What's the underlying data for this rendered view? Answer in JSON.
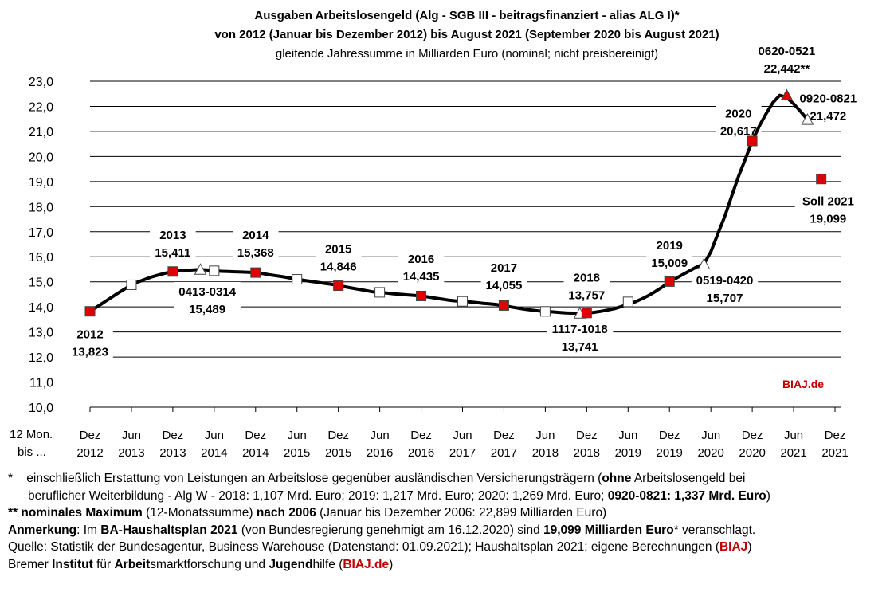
{
  "chart_data": {
    "type": "line",
    "title": "Ausgaben Arbeitslosengeld (Alg - SGB III - beitragsfinanziert - alias ALG I)*",
    "title2": "von 2012 (Januar bis Dezember 2012) bis August 2021 (September 2020 bis August 2021)",
    "subtitle": "gleitende Jahressumme in Milliarden Euro (nominal; nicht preisbereinigt)",
    "ylim": [
      10.0,
      23.0
    ],
    "yticks": [
      "23,0",
      "22,0",
      "21,0",
      "20,0",
      "19,0",
      "18,0",
      "17,0",
      "16,0",
      "15,0",
      "14,0",
      "13,0",
      "12,0",
      "11,0",
      "10,0"
    ],
    "x_axis_title": [
      "12 Mon.",
      "bis ..."
    ],
    "xticks": [
      {
        "l1": "Dez",
        "l2": "2012"
      },
      {
        "l1": "Jun",
        "l2": "2013"
      },
      {
        "l1": "Dez",
        "l2": "2013"
      },
      {
        "l1": "Jun",
        "l2": "2014"
      },
      {
        "l1": "Dez",
        "l2": "2014"
      },
      {
        "l1": "Jun",
        "l2": "2015"
      },
      {
        "l1": "Dez",
        "l2": "2015"
      },
      {
        "l1": "Jun",
        "l2": "2016"
      },
      {
        "l1": "Dez",
        "l2": "2016"
      },
      {
        "l1": "Jun",
        "l2": "2017"
      },
      {
        "l1": "Dez",
        "l2": "2017"
      },
      {
        "l1": "Jun",
        "l2": "2018"
      },
      {
        "l1": "Dez",
        "l2": "2018"
      },
      {
        "l1": "Jun",
        "l2": "2019"
      },
      {
        "l1": "Dez",
        "l2": "2019"
      },
      {
        "l1": "Jun",
        "l2": "2020"
      },
      {
        "l1": "Dez",
        "l2": "2020"
      },
      {
        "l1": "Jun",
        "l2": "2021"
      },
      {
        "l1": "Dez",
        "l2": "2021"
      }
    ],
    "series": [
      {
        "x": [
          "2012-12",
          "2013-01",
          "2013-02",
          "2013-03",
          "2013-04",
          "2013-05",
          "2013-06",
          "2013-07",
          "2013-08",
          "2013-09",
          "2013-10",
          "2013-11",
          "2013-12",
          "2014-01",
          "2014-02",
          "2014-03",
          "2014-04",
          "2014-05",
          "2014-06",
          "2014-07",
          "2014-08",
          "2014-09",
          "2014-10",
          "2014-11",
          "2014-12",
          "2015-01",
          "2015-02",
          "2015-03",
          "2015-04",
          "2015-05",
          "2015-06",
          "2015-07",
          "2015-08",
          "2015-09",
          "2015-10",
          "2015-11",
          "2015-12",
          "2016-01",
          "2016-02",
          "2016-03",
          "2016-04",
          "2016-05",
          "2016-06",
          "2016-07",
          "2016-08",
          "2016-09",
          "2016-10",
          "2016-11",
          "2016-12",
          "2017-01",
          "2017-02",
          "2017-03",
          "2017-04",
          "2017-05",
          "2017-06",
          "2017-07",
          "2017-08",
          "2017-09",
          "2017-10",
          "2017-11",
          "2017-12",
          "2018-01",
          "2018-02",
          "2018-03",
          "2018-04",
          "2018-05",
          "2018-06",
          "2018-07",
          "2018-08",
          "2018-09",
          "2018-10",
          "2018-11",
          "2018-12",
          "2019-01",
          "2019-02",
          "2019-03",
          "2019-04",
          "2019-05",
          "2019-06",
          "2019-07",
          "2019-08",
          "2019-09",
          "2019-10",
          "2019-11",
          "2019-12",
          "2020-01",
          "2020-02",
          "2020-03",
          "2020-04",
          "2020-05",
          "2020-06",
          "2020-07",
          "2020-08",
          "2020-09",
          "2020-10",
          "2020-11",
          "2020-12",
          "2021-01",
          "2021-02",
          "2021-03",
          "2021-04",
          "2021-05",
          "2021-06",
          "2021-07",
          "2021-08"
        ],
        "values": [
          13.823,
          14.0,
          14.18,
          14.36,
          14.54,
          14.71,
          14.88,
          15.0,
          15.1,
          15.2,
          15.28,
          15.35,
          15.411,
          15.44,
          15.46,
          15.475,
          15.489,
          15.47,
          15.44,
          15.42,
          15.41,
          15.4,
          15.39,
          15.38,
          15.368,
          15.33,
          15.28,
          15.24,
          15.2,
          15.15,
          15.1,
          15.06,
          15.02,
          14.98,
          14.94,
          14.9,
          14.846,
          14.8,
          14.75,
          14.7,
          14.65,
          14.6,
          14.58,
          14.55,
          14.52,
          14.5,
          14.48,
          14.46,
          14.435,
          14.4,
          14.35,
          14.31,
          14.27,
          14.24,
          14.22,
          14.2,
          14.17,
          14.14,
          14.12,
          14.09,
          14.055,
          14.0,
          13.95,
          13.91,
          13.87,
          13.84,
          13.82,
          13.8,
          13.78,
          13.76,
          13.75,
          13.741,
          13.757,
          13.78,
          13.82,
          13.87,
          13.93,
          14.01,
          14.1,
          14.2,
          14.32,
          14.46,
          14.62,
          14.8,
          15.009,
          15.15,
          15.3,
          15.45,
          15.6,
          15.707,
          16.2,
          16.9,
          17.6,
          18.4,
          19.2,
          19.9,
          20.617,
          21.2,
          21.7,
          22.15,
          22.442,
          22.35,
          22.1,
          21.8,
          21.472
        ]
      }
    ],
    "markers": [
      {
        "x": "2012-12",
        "value": 13.823,
        "shape": "square",
        "color": "#e00000"
      },
      {
        "x": "2013-06",
        "value": 14.88,
        "shape": "square",
        "color": "#ffffff"
      },
      {
        "x": "2013-12",
        "value": 15.411,
        "shape": "square",
        "color": "#e00000"
      },
      {
        "x": "2014-04",
        "value": 15.489,
        "shape": "triangle",
        "color": "#ffffff"
      },
      {
        "x": "2014-06",
        "value": 15.44,
        "shape": "square",
        "color": "#ffffff"
      },
      {
        "x": "2014-12",
        "value": 15.368,
        "shape": "square",
        "color": "#e00000"
      },
      {
        "x": "2015-06",
        "value": 15.1,
        "shape": "square",
        "color": "#ffffff"
      },
      {
        "x": "2015-12",
        "value": 14.846,
        "shape": "square",
        "color": "#e00000"
      },
      {
        "x": "2016-06",
        "value": 14.58,
        "shape": "square",
        "color": "#ffffff"
      },
      {
        "x": "2016-12",
        "value": 14.435,
        "shape": "square",
        "color": "#e00000"
      },
      {
        "x": "2017-06",
        "value": 14.22,
        "shape": "square",
        "color": "#ffffff"
      },
      {
        "x": "2017-12",
        "value": 14.055,
        "shape": "square",
        "color": "#e00000"
      },
      {
        "x": "2018-06",
        "value": 13.82,
        "shape": "square",
        "color": "#ffffff"
      },
      {
        "x": "2018-11",
        "value": 13.741,
        "shape": "triangle",
        "color": "#ffffff"
      },
      {
        "x": "2018-12",
        "value": 13.757,
        "shape": "square",
        "color": "#e00000"
      },
      {
        "x": "2019-06",
        "value": 14.2,
        "shape": "square",
        "color": "#ffffff"
      },
      {
        "x": "2019-12",
        "value": 15.009,
        "shape": "square",
        "color": "#e00000"
      },
      {
        "x": "2020-05",
        "value": 15.707,
        "shape": "triangle",
        "color": "#ffffff"
      },
      {
        "x": "2020-12",
        "value": 20.617,
        "shape": "square",
        "color": "#e00000"
      },
      {
        "x": "2021-05",
        "value": 22.442,
        "shape": "triangle",
        "color": "#e00000"
      },
      {
        "x": "2021-08",
        "value": 21.472,
        "shape": "triangle",
        "color": "#ffffff"
      },
      {
        "x": "2021-10",
        "value": 19.099,
        "shape": "square",
        "color": "#e00000"
      }
    ],
    "annotations": [
      {
        "line1": "2012",
        "line2": "13,823",
        "x": "2012-12",
        "value": 12.75
      },
      {
        "line1": "2013",
        "line2": "15,411",
        "x": "2013-12",
        "value": 16.7
      },
      {
        "line1": "0413-0314",
        "line2": "15,489",
        "x": "2014-05",
        "value": 14.45
      },
      {
        "line1": "2014",
        "line2": "15,368",
        "x": "2014-12",
        "value": 16.7
      },
      {
        "line1": "2015",
        "line2": "14,846",
        "x": "2015-12",
        "value": 16.15
      },
      {
        "line1": "2016",
        "line2": "14,435",
        "x": "2016-12",
        "value": 15.75
      },
      {
        "line1": "2017",
        "line2": "14,055",
        "x": "2017-12",
        "value": 15.4
      },
      {
        "line1": "2018",
        "line2": "13,757",
        "x": "2018-12",
        "value": 15.0
      },
      {
        "line1": "1117-1018",
        "line2": "13,741",
        "x": "2018-11",
        "value": 12.95
      },
      {
        "line1": "2019",
        "line2": "15,009",
        "x": "2019-12",
        "value": 16.3
      },
      {
        "line1": "0519-0420",
        "line2": "15,707",
        "x": "2020-08",
        "value": 14.9
      },
      {
        "line1": "2020",
        "line2": "20,617",
        "x": "2020-10",
        "value": 21.55
      },
      {
        "line1": "0620-0521",
        "line2": "22,442**",
        "x": "2021-05",
        "value": 24.05
      },
      {
        "line1": "0920-0821",
        "line2": "21,472",
        "x": "2021-11",
        "value": 22.15
      },
      {
        "line1": "Soll 2021",
        "line2": "19,099",
        "x": "2021-11",
        "value": 18.05
      }
    ],
    "grid": true,
    "line_color": "#000000"
  },
  "brand": "BIAJ.de",
  "notes": {
    "n1a": "*",
    "n1b": "einschließlich Erstattung von Leistungen an Arbeitslose gegenüber ausländischen Versicherungsträgern (",
    "n1c": "ohne",
    "n1d": " Arbeitslosengeld bei",
    "n1e": "beruflicher Weiterbildung  - Alg W - 2018: 1,107 Mrd. Euro; 2019: 1,217 Mrd. Euro; 2020: 1,269 Mrd. Euro; ",
    "n1f": "0920-0821: 1,337 Mrd. Euro",
    "n1g": ")",
    "n2a": "** nominales Maximum",
    "n2b": " (12-Monatssumme) ",
    "n2c": "nach 2006",
    "n2d": " (Januar bis Dezember 2006: 22,899 Milliarden Euro)",
    "n3a": "Anmerkung",
    "n3b": ": Im ",
    "n3c": "BA-Haushaltsplan 2021",
    "n3d": " (von Bundesregierung genehmigt am 16.12.2020) sind ",
    "n3e": "19,099 Milliarden Euro",
    "n3f": "* veranschlagt.",
    "n4a": "Quelle: Statistik der Bundesagentur, Business Warehouse (Datenstand: 01.09.2021); Haushaltsplan 2021; eigene Berechnungen (",
    "n4b": "BIAJ",
    "n4c": ")",
    "n5a": "Bremer ",
    "n5b": "Institut",
    "n5c": " für ",
    "n5d": "Arbeit",
    "n5e": "smarktforschung und ",
    "n5f": "Jugend",
    "n5g": "hilfe (",
    "n5h": "BIAJ.de",
    "n5i": ")"
  }
}
